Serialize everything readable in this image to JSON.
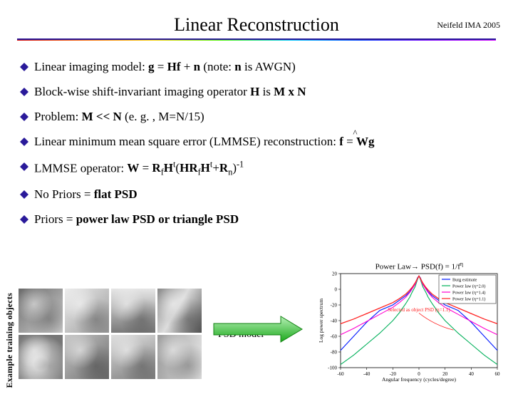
{
  "header": {
    "right": "Neifeld IMA 2005"
  },
  "title": "Linear Reconstruction",
  "bullets": [
    {
      "prefix": "Linear imaging model: ",
      "formula_html": "<span class='bold'>g</span> = <span class='bold'>Hf</span> + <span class='bold'>n</span>",
      "suffix": "  (note: ",
      "note_bold": "n",
      "note_tail": " is AWGN)"
    },
    {
      "prefix": "Block-wise shift-invariant imaging operator ",
      "bold1": "H",
      "mid": " is ",
      "bold2": "M x N",
      "suffix": ""
    },
    {
      "prefix": "Problem: ",
      "bold1": "M << N",
      "mid": " (e. g. , M=N/15)",
      "bold2": "",
      "suffix": ""
    },
    {
      "prefix": "Linear minimum mean square error (LMMSE) reconstruction: ",
      "formula_html": "<span class='bold'>f</span> = <span class='bold'>Wg</span>"
    },
    {
      "prefix": "LMMSE operator: ",
      "formula_html": "<span class='bold'>W</span> = <span class='bold'>R</span><span class='sub'>f</span><span class='bold'>H</span><span class='sup'>t</span>(<span class='bold'>HR</span><span class='sub'>f</span><span class='bold'>H</span><span class='sup'>t</span>+<span class='bold'>R</span><span class='sub'>n</span>)<span class='sup'>-1</span>"
    },
    {
      "prefix": "No Priors = ",
      "bold1": "flat PSD",
      "mid": "",
      "bold2": "",
      "suffix": ""
    },
    {
      "prefix": "Priors = ",
      "bold1": "power law PSD or triangle PSD",
      "mid": "",
      "bold2": "",
      "suffix": ""
    }
  ],
  "sidebar_label": "Example training objects",
  "psd_label": "PSD model",
  "arrow": {
    "fill_gradient_start": "#b6f0b6",
    "fill_gradient_end": "#1aa81a",
    "width": 92,
    "height": 44
  },
  "chart": {
    "title_prefix": "Power Law",
    "title_arrow": "→",
    "title_suffix": " PSD(f) = 1/f",
    "title_exponent": "η",
    "bg": "#ffffff",
    "axis_color": "#000000",
    "xlabel": "Angular frequency (cycles/degree)",
    "ylabel": "Log power spectrum",
    "xlim": [
      -60,
      60
    ],
    "ylim": [
      -100,
      20
    ],
    "xticks": [
      -60,
      -40,
      -20,
      0,
      20,
      40,
      60
    ],
    "yticks": [
      -100,
      -80,
      -60,
      -40,
      -20,
      0,
      20
    ],
    "legend": {
      "box_color": "#000000",
      "items": [
        {
          "label": "Burg estimate",
          "color": "#0018ff"
        },
        {
          "label": "Power law (η=2.0)",
          "color": "#00b05a"
        },
        {
          "label": "Power law (η=1.4)",
          "color": "#ff00d0"
        },
        {
          "label": "Power law (η=1.1)",
          "color": "#ff2020"
        }
      ]
    },
    "annotation": {
      "text": "Selected as object PSD (η=1.1)",
      "color": "#ff2020"
    },
    "series": [
      {
        "color": "#0018ff",
        "width": 1.1,
        "pts": [
          [
            -60,
            -78
          ],
          [
            -50,
            -60
          ],
          [
            -40,
            -42
          ],
          [
            -30,
            -27
          ],
          [
            -20,
            -20
          ],
          [
            -15,
            -14
          ],
          [
            -10,
            -8
          ],
          [
            -7,
            -3
          ],
          [
            -5,
            2
          ],
          [
            -3,
            7
          ],
          [
            -2,
            11
          ],
          [
            -1,
            15
          ],
          [
            0,
            17
          ],
          [
            1,
            15
          ],
          [
            2,
            11
          ],
          [
            3,
            7
          ],
          [
            5,
            2
          ],
          [
            7,
            -3
          ],
          [
            10,
            -8
          ],
          [
            15,
            -14
          ],
          [
            20,
            -20
          ],
          [
            30,
            -27
          ],
          [
            40,
            -42
          ],
          [
            50,
            -60
          ],
          [
            60,
            -78
          ]
        ]
      },
      {
        "color": "#00b05a",
        "width": 1.1,
        "pts": [
          [
            -60,
            -96
          ],
          [
            -50,
            -84
          ],
          [
            -40,
            -70
          ],
          [
            -30,
            -56
          ],
          [
            -20,
            -40
          ],
          [
            -15,
            -30
          ],
          [
            -10,
            -18
          ],
          [
            -7,
            -10
          ],
          [
            -5,
            -3
          ],
          [
            -3,
            3
          ],
          [
            -2,
            8
          ],
          [
            -1,
            13
          ],
          [
            0,
            17
          ],
          [
            1,
            13
          ],
          [
            2,
            8
          ],
          [
            3,
            3
          ],
          [
            5,
            -3
          ],
          [
            7,
            -10
          ],
          [
            10,
            -18
          ],
          [
            15,
            -30
          ],
          [
            20,
            -40
          ],
          [
            30,
            -56
          ],
          [
            40,
            -70
          ],
          [
            50,
            -84
          ],
          [
            60,
            -96
          ]
        ]
      },
      {
        "color": "#ff00d0",
        "width": 1.1,
        "pts": [
          [
            -60,
            -58
          ],
          [
            -50,
            -50
          ],
          [
            -40,
            -41
          ],
          [
            -30,
            -32
          ],
          [
            -20,
            -23
          ],
          [
            -15,
            -17
          ],
          [
            -10,
            -10
          ],
          [
            -7,
            -4
          ],
          [
            -5,
            1
          ],
          [
            -3,
            6
          ],
          [
            -2,
            10
          ],
          [
            -1,
            14
          ],
          [
            0,
            17
          ],
          [
            1,
            14
          ],
          [
            2,
            10
          ],
          [
            3,
            6
          ],
          [
            5,
            1
          ],
          [
            7,
            -4
          ],
          [
            10,
            -10
          ],
          [
            15,
            -17
          ],
          [
            20,
            -23
          ],
          [
            30,
            -32
          ],
          [
            40,
            -41
          ],
          [
            50,
            -50
          ],
          [
            60,
            -58
          ]
        ]
      },
      {
        "color": "#ff2020",
        "width": 1.3,
        "pts": [
          [
            -60,
            -44
          ],
          [
            -50,
            -38
          ],
          [
            -40,
            -31
          ],
          [
            -30,
            -24
          ],
          [
            -20,
            -17
          ],
          [
            -15,
            -12
          ],
          [
            -10,
            -6
          ],
          [
            -7,
            -1
          ],
          [
            -5,
            3
          ],
          [
            -3,
            8
          ],
          [
            -2,
            11
          ],
          [
            -1,
            14
          ],
          [
            0,
            17
          ],
          [
            1,
            14
          ],
          [
            2,
            11
          ],
          [
            3,
            8
          ],
          [
            5,
            3
          ],
          [
            7,
            -1
          ],
          [
            10,
            -6
          ],
          [
            15,
            -12
          ],
          [
            20,
            -17
          ],
          [
            30,
            -24
          ],
          [
            40,
            -31
          ],
          [
            50,
            -38
          ],
          [
            60,
            -44
          ]
        ]
      }
    ]
  },
  "bullet_color": "#2a1a9a"
}
